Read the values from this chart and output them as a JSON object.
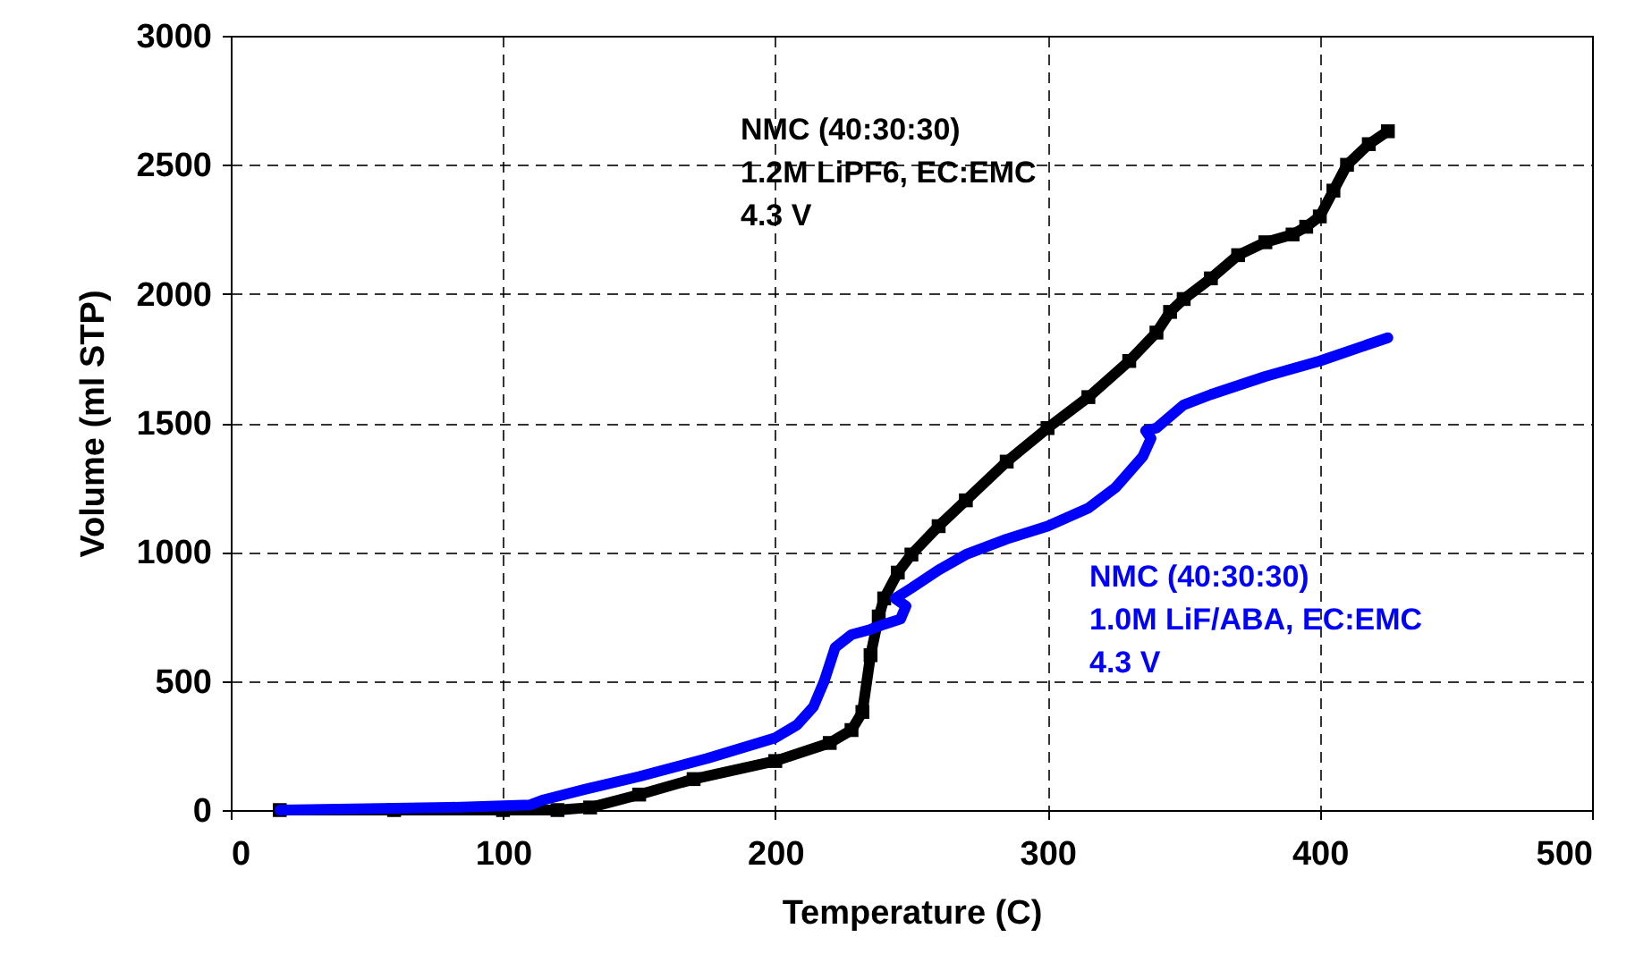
{
  "chart_data": {
    "type": "line",
    "xlabel": "Temperature (C)",
    "ylabel": "Volume (ml STP)",
    "xlim": [
      0,
      500
    ],
    "xticks": [
      0,
      100,
      200,
      300,
      400,
      500
    ],
    "ylim": [
      0,
      3000
    ],
    "yticks": [
      0,
      500,
      1000,
      1500,
      2000,
      2500,
      3000
    ],
    "grid": true,
    "line_style": "solid",
    "series": [
      {
        "name": "NMC (40:30:30)\n1.2M LiPF6, EC:EMC\n4.3 V",
        "color": "#000000",
        "marker": "square",
        "x": [
          18,
          60,
          100,
          120,
          132,
          150,
          170,
          200,
          220,
          228,
          232,
          235,
          238,
          240,
          245,
          250,
          260,
          270,
          285,
          300,
          315,
          330,
          340,
          345,
          350,
          360,
          370,
          380,
          390,
          395,
          400,
          405,
          410,
          418,
          425
        ],
        "values": [
          0,
          0,
          0,
          0,
          10,
          60,
          120,
          190,
          260,
          310,
          380,
          600,
          750,
          820,
          920,
          990,
          1100,
          1200,
          1350,
          1480,
          1600,
          1740,
          1850,
          1930,
          1980,
          2060,
          2150,
          2200,
          2230,
          2260,
          2300,
          2400,
          2500,
          2580,
          2630
        ]
      },
      {
        "name": "NMC (40:30:30)\n1.0M LiF/ABA, EC:EMC\n4.3 V",
        "color": "#0000ff",
        "marker": "none",
        "x": [
          18,
          50,
          80,
          110,
          115,
          130,
          150,
          175,
          200,
          208,
          214,
          218,
          222,
          228,
          235,
          240,
          246,
          248,
          244,
          250,
          260,
          270,
          285,
          300,
          315,
          325,
          335,
          338,
          336,
          340,
          350,
          360,
          380,
          400,
          425
        ],
        "values": [
          0,
          5,
          10,
          20,
          40,
          80,
          130,
          200,
          280,
          330,
          400,
          500,
          630,
          680,
          700,
          720,
          740,
          790,
          820,
          860,
          930,
          990,
          1050,
          1100,
          1170,
          1250,
          1370,
          1440,
          1470,
          1480,
          1570,
          1610,
          1680,
          1740,
          1830
        ]
      }
    ]
  }
}
